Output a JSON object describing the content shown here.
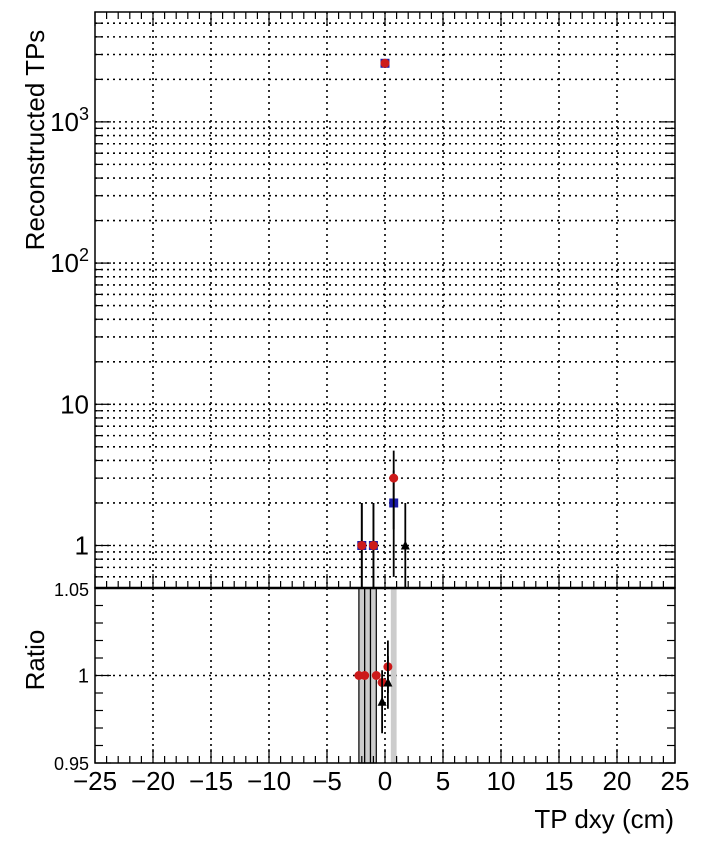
{
  "chart_data": [
    {
      "type": "scatter",
      "ylabel": "Reconstructed TPs",
      "yscale": "log",
      "ylim": [
        0.5,
        6000
      ],
      "xlim": [
        -25,
        25
      ],
      "grid": true,
      "yticks": [
        {
          "value": 1,
          "label": "1"
        },
        {
          "value": 10,
          "label": "10"
        },
        {
          "value": 100,
          "label": "10",
          "exp": "2"
        },
        {
          "value": 1000,
          "label": "10",
          "exp": "3"
        }
      ],
      "series": [
        {
          "marker": "square",
          "color": "#1a1aa8",
          "points": [
            {
              "x": -2.0,
              "y": 1,
              "yerr": 1
            },
            {
              "x": -1.0,
              "y": 1,
              "yerr": 1
            },
            {
              "x": 0.0,
              "y": 2600,
              "yerr": 51
            },
            {
              "x": 0.75,
              "y": 2,
              "yerr": 1.4
            }
          ]
        },
        {
          "marker": "circle",
          "color": "#cc1a1a",
          "points": [
            {
              "x": -2.0,
              "y": 1,
              "yerr": 1
            },
            {
              "x": -1.0,
              "y": 1,
              "yerr": 1
            },
            {
              "x": 0.0,
              "y": 2600,
              "yerr": 51
            },
            {
              "x": 0.75,
              "y": 3,
              "yerr": 1.7
            }
          ]
        },
        {
          "marker": "triangle",
          "color": "#000000",
          "points": [
            {
              "x": 1.75,
              "y": 1,
              "yerr": 1
            }
          ]
        }
      ]
    },
    {
      "type": "scatter",
      "xlabel": "TP dxy (cm)",
      "ylabel": "Ratio",
      "xlim": [
        -25,
        25
      ],
      "ylim": [
        0.95,
        1.05
      ],
      "grid": true,
      "xticks": [
        "−25",
        "−20",
        "−15",
        "−10",
        "−5",
        "0",
        "5",
        "10",
        "15",
        "20",
        "25"
      ],
      "yticks": [
        {
          "value": 0.95,
          "label": "0.95"
        },
        {
          "value": 1.0,
          "label": "1"
        },
        {
          "value": 1.05,
          "label": "1.05"
        }
      ],
      "uncertainty_bands": [
        {
          "x0": -2.25,
          "x1": -1.75
        },
        {
          "x0": -1.75,
          "x1": -1.25
        },
        {
          "x0": -1.25,
          "x1": -0.75
        },
        {
          "x0": 0.5,
          "x1": 1.0
        }
      ],
      "series": [
        {
          "marker": "circle",
          "color": "#cc1a1a",
          "points": [
            {
              "x": -2.25,
              "y": 1.0
            },
            {
              "x": -1.75,
              "y": 1.0
            },
            {
              "x": -0.75,
              "y": 1.0
            },
            {
              "x": -0.25,
              "y": 0.996
            },
            {
              "x": 0.25,
              "y": 1.005,
              "yerr": 0.015
            }
          ]
        },
        {
          "marker": "triangle",
          "color": "#000000",
          "points": [
            {
              "x": -0.25,
              "y": 0.985,
              "yerr": 0.018
            },
            {
              "x": 0.25,
              "y": 0.996,
              "yerr": 0.015
            }
          ]
        }
      ]
    }
  ]
}
